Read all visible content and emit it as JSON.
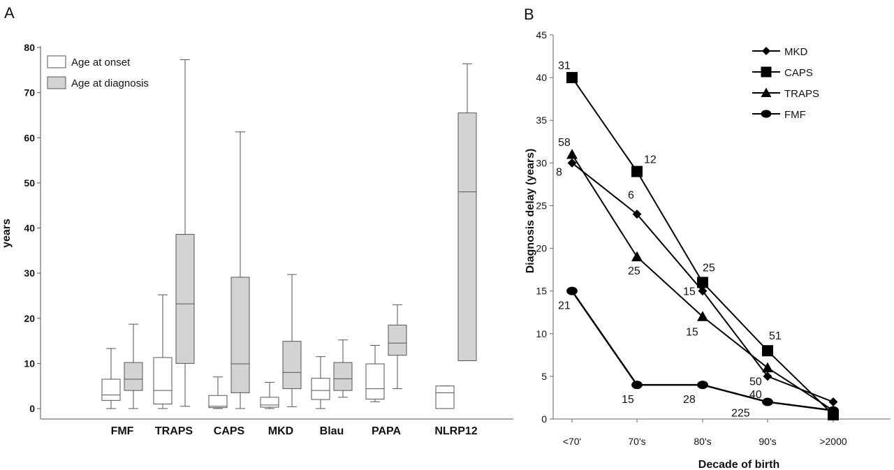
{
  "chart_data": [
    {
      "panel_label": "A",
      "type": "box",
      "ylabel": "years",
      "ylim": [
        0,
        80
      ],
      "yticks": [
        0,
        10,
        20,
        30,
        40,
        50,
        60,
        70,
        80
      ],
      "categories": [
        "FMF",
        "TRAPS",
        "CAPS",
        "MKD",
        "Blau",
        "PAPA",
        "NLRP12"
      ],
      "legend": {
        "placement": "top-left",
        "entries": [
          "Age at onset",
          "Age at diagnosis"
        ]
      },
      "colors": {
        "onset": "#ffffff",
        "diagnosis": "#d3d3d3",
        "stroke": "#555555"
      },
      "series": [
        {
          "name": "Age at onset",
          "boxes": [
            {
              "category": "FMF",
              "min": 0,
              "q1": 1.8,
              "median": 3,
              "q3": 6.5,
              "max": 13.3
            },
            {
              "category": "TRAPS",
              "min": 0,
              "q1": 1,
              "median": 4,
              "q3": 11.3,
              "max": 25.2
            },
            {
              "category": "CAPS",
              "min": 0,
              "q1": 0.2,
              "median": 0.5,
              "q3": 2.9,
              "max": 7
            },
            {
              "category": "MKD",
              "min": 0,
              "q1": 0.3,
              "median": 0.8,
              "q3": 2.5,
              "max": 5.8
            },
            {
              "category": "Blau",
              "min": 0,
              "q1": 2,
              "median": 4,
              "q3": 6.7,
              "max": 11.5
            },
            {
              "category": "PAPA",
              "min": 1.5,
              "q1": 2.1,
              "median": 4.4,
              "q3": 9.9,
              "max": 14
            },
            {
              "category": "NLRP12",
              "min": 0,
              "q1": 0,
              "median": 3.5,
              "q3": 5,
              "max": 5
            }
          ]
        },
        {
          "name": "Age at diagnosis",
          "boxes": [
            {
              "category": "FMF",
              "min": 0,
              "q1": 4,
              "median": 6.5,
              "q3": 10.2,
              "max": 18.7
            },
            {
              "category": "TRAPS",
              "min": 0.5,
              "q1": 10,
              "median": 23.2,
              "q3": 38.6,
              "max": 77.3
            },
            {
              "category": "CAPS",
              "min": 0,
              "q1": 3.5,
              "median": 9.9,
              "q3": 29.1,
              "max": 61.3
            },
            {
              "category": "MKD",
              "min": 0.4,
              "q1": 4.4,
              "median": 8,
              "q3": 14.9,
              "max": 29.7
            },
            {
              "category": "Blau",
              "min": 2.5,
              "q1": 4,
              "median": 6.6,
              "q3": 10.2,
              "max": 15.2
            },
            {
              "category": "PAPA",
              "min": 4.4,
              "q1": 11.8,
              "median": 14.5,
              "q3": 18.5,
              "max": 23
            },
            {
              "category": "NLRP12",
              "min": 10.6,
              "q1": 10.6,
              "median": 48,
              "q3": 65.5,
              "max": 76.4
            }
          ]
        }
      ]
    },
    {
      "panel_label": "B",
      "type": "line",
      "xlabel": "Decade of birth",
      "ylabel": "Diagnosis delay  (years)",
      "ylim": [
        0,
        45
      ],
      "yticks": [
        0,
        5,
        10,
        15,
        20,
        25,
        30,
        35,
        40,
        45
      ],
      "categories": [
        "<70'",
        "70's",
        "80's",
        "90's",
        ">2000"
      ],
      "legend": {
        "placement": "top-right"
      },
      "series": [
        {
          "name": "MKD",
          "marker": "diamond",
          "values": [
            30,
            24,
            15,
            5,
            2
          ]
        },
        {
          "name": "CAPS",
          "marker": "square",
          "values": [
            40,
            29,
            16,
            8,
            0.5
          ]
        },
        {
          "name": "TRAPS",
          "marker": "triangle",
          "values": [
            31,
            19,
            12,
            6,
            1
          ]
        },
        {
          "name": "FMF",
          "marker": "circle",
          "values": [
            15,
            4,
            4,
            2,
            1
          ]
        }
      ],
      "annotations": [
        {
          "text": "31",
          "series": "CAPS",
          "category": "<70'"
        },
        {
          "text": "58",
          "series": "TRAPS",
          "category": "<70'"
        },
        {
          "text": "8",
          "series": "MKD",
          "category": "<70'"
        },
        {
          "text": "21",
          "series": "FMF",
          "category": "<70'"
        },
        {
          "text": "12",
          "series": "CAPS",
          "category": "70's"
        },
        {
          "text": "6",
          "series": "MKD",
          "category": "70's"
        },
        {
          "text": "25",
          "series": "TRAPS",
          "category": "70's"
        },
        {
          "text": "15",
          "series": "FMF",
          "category": "70's"
        },
        {
          "text": "25",
          "series": "CAPS",
          "category": "80's"
        },
        {
          "text": "15",
          "series": "MKD",
          "category": "80's"
        },
        {
          "text": "15",
          "series": "TRAPS",
          "category": "80's"
        },
        {
          "text": "28",
          "series": "FMF",
          "category": "80's"
        },
        {
          "text": "51",
          "series": "CAPS",
          "category": "90's"
        },
        {
          "text": "50",
          "series": "TRAPS",
          "category": "90's"
        },
        {
          "text": "40",
          "series": "MKD",
          "category": "90's"
        },
        {
          "text": "225",
          "series": "FMF",
          "category": "90's"
        }
      ]
    }
  ]
}
